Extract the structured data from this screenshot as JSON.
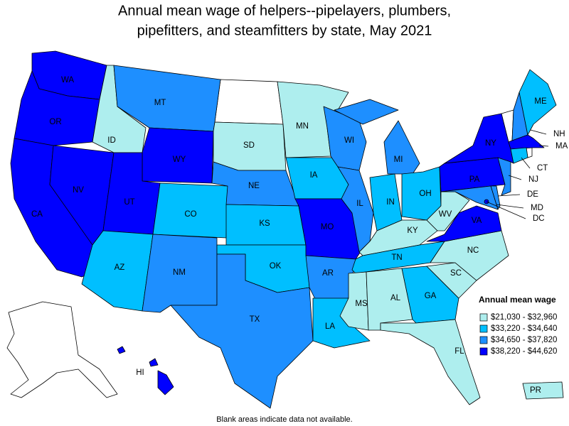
{
  "title_lines": [
    "Annual mean wage of helpers--pipelayers, plumbers,",
    "pipefitters, and steamfitters by state, May 2021"
  ],
  "legend": {
    "title": "Annual mean wage",
    "items": [
      {
        "label": "$21,030 - $32,960",
        "color": "#aeeeee"
      },
      {
        "label": "$33,220 - $34,640",
        "color": "#00bfff"
      },
      {
        "label": "$34,650 - $37,820",
        "color": "#1e8fff"
      },
      {
        "label": "$38,220 - $44,620",
        "color": "#0000ff"
      }
    ]
  },
  "states": [
    {
      "label": "WA",
      "class": 3
    },
    {
      "label": "OR",
      "class": 3
    },
    {
      "label": "CA",
      "class": 3
    },
    {
      "label": "NV",
      "class": 3
    },
    {
      "label": "ID",
      "class": 0
    },
    {
      "label": "MT",
      "class": 2
    },
    {
      "label": "WY",
      "class": 3
    },
    {
      "label": "UT",
      "class": 3
    },
    {
      "label": "AZ",
      "class": 1
    },
    {
      "label": "CO",
      "class": 1
    },
    {
      "label": "NM",
      "class": 2
    },
    {
      "label": "SD",
      "class": 0
    },
    {
      "label": "NE",
      "class": 2
    },
    {
      "label": "KS",
      "class": 1
    },
    {
      "label": "OK",
      "class": 1
    },
    {
      "label": "TX",
      "class": 2
    },
    {
      "label": "MN",
      "class": 0
    },
    {
      "label": "IA",
      "class": 1
    },
    {
      "label": "MO",
      "class": 3
    },
    {
      "label": "AR",
      "class": 2
    },
    {
      "label": "LA",
      "class": 1
    },
    {
      "label": "WI",
      "class": 2
    },
    {
      "label": "IL",
      "class": 2
    },
    {
      "label": "MI",
      "class": 2
    },
    {
      "label": "IN",
      "class": 1
    },
    {
      "label": "OH",
      "class": 1
    },
    {
      "label": "KY",
      "class": 0
    },
    {
      "label": "TN",
      "class": 1
    },
    {
      "label": "MS",
      "class": 0
    },
    {
      "label": "AL",
      "class": 0
    },
    {
      "label": "GA",
      "class": 1
    },
    {
      "label": "FL",
      "class": 0
    },
    {
      "label": "SC",
      "class": 0
    },
    {
      "label": "NC",
      "class": 0
    },
    {
      "label": "VA",
      "class": 3
    },
    {
      "label": "WV",
      "class": 0
    },
    {
      "label": "PA",
      "class": 3
    },
    {
      "label": "NY",
      "class": 3
    },
    {
      "label": "NH",
      "class": 2
    },
    {
      "label": "ME",
      "class": 1
    },
    {
      "label": "MA",
      "class": 3
    },
    {
      "label": "CT",
      "class": 1
    },
    {
      "label": "NJ",
      "class": 2
    },
    {
      "label": "DE",
      "class": 2
    },
    {
      "label": "MD",
      "class": 2
    },
    {
      "label": "DC",
      "class": 3
    },
    {
      "label": "HI",
      "class": 3
    },
    {
      "label": "PR",
      "class": 0
    }
  ],
  "note": "Blank areas indicate data not available."
}
